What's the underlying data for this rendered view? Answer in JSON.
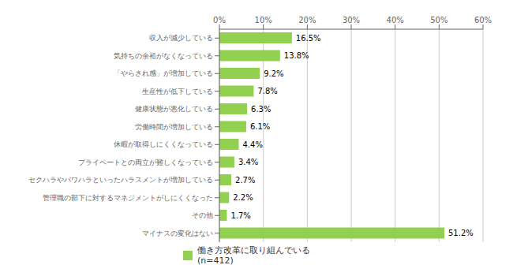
{
  "chart_data": {
    "type": "bar",
    "orientation": "horizontal",
    "categories": [
      "収入が減少している",
      "気持ちの余裕がなくなっている",
      "「やらされ感」が増加している",
      "生産性が低下している",
      "健康状態が悪化している",
      "労働時間が増加している",
      "休暇が取得しにくくなっている",
      "プライベートとの両立が難しくなっている",
      "セクハラやパワハラといったハラスメントが増加している",
      "管理職の部下に対するマネジメントがしにくくなった",
      "その他",
      "マイナスの変化はない"
    ],
    "series": [
      {
        "name": "働き方改革に取り組んでいる\n(n=412)",
        "color": "#92d050",
        "values": [
          16.5,
          13.8,
          9.2,
          7.8,
          6.3,
          6.1,
          4.4,
          3.4,
          2.7,
          2.2,
          1.7,
          51.2
        ],
        "value_labels": [
          "16.5%",
          "13.8%",
          "9.2%",
          "7.8%",
          "6.3%",
          "6.1%",
          "4.4%",
          "3.4%",
          "2.7%",
          "2.2%",
          "1.7%",
          "51.2%"
        ]
      }
    ],
    "xlim": [
      0,
      60
    ],
    "xticks": [
      {
        "value": 0,
        "label": "0%"
      },
      {
        "value": 10,
        "label": "10%"
      },
      {
        "value": 20,
        "label": "20%"
      },
      {
        "value": 30,
        "label": "30%"
      },
      {
        "value": 40,
        "label": "40%"
      },
      {
        "value": 50,
        "label": "50%"
      },
      {
        "value": 60,
        "label": "60%"
      }
    ],
    "grid": true,
    "data_labels": true,
    "legend": "bottom"
  }
}
